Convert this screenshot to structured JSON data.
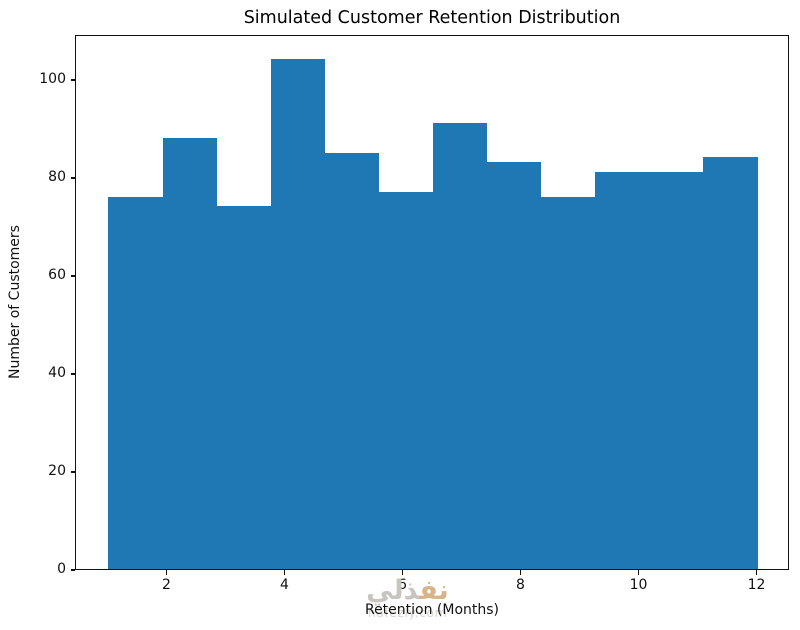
{
  "figure": {
    "title": "Simulated Customer Retention Distribution",
    "xlabel": "Retention (Months)",
    "ylabel": "Number of Customers"
  },
  "watermark": {
    "arabic_part_primary": "نف",
    "arabic_part_secondary": "ذلي",
    "url": "nafezly.com",
    "color_primary": "#d7b48c",
    "color_secondary": "#c8c5bf",
    "url_color": "#d9d6d0"
  },
  "chart_data": {
    "type": "bar",
    "subtype": "histogram",
    "title": "Simulated Customer Retention Distribution",
    "xlabel": "Retention (Months)",
    "ylabel": "Number of Customers",
    "bin_range": [
      1,
      12
    ],
    "num_bins": 12,
    "bin_edges": [
      1.0,
      1.9167,
      2.8333,
      3.75,
      4.6667,
      5.5833,
      6.5,
      7.4167,
      8.3333,
      9.25,
      10.1667,
      11.0833,
      12.0
    ],
    "values": [
      76,
      88,
      74,
      104,
      85,
      77,
      91,
      83,
      76,
      81,
      81,
      84
    ],
    "xticks": [
      2,
      4,
      6,
      8,
      10,
      12
    ],
    "yticks": [
      0,
      20,
      40,
      60,
      80,
      100
    ],
    "xlim": [
      0.45,
      12.55
    ],
    "ylim": [
      0,
      109.2
    ],
    "bar_color": "#1f77b4",
    "axis_color": "#111111",
    "grid": false,
    "legend": false
  }
}
